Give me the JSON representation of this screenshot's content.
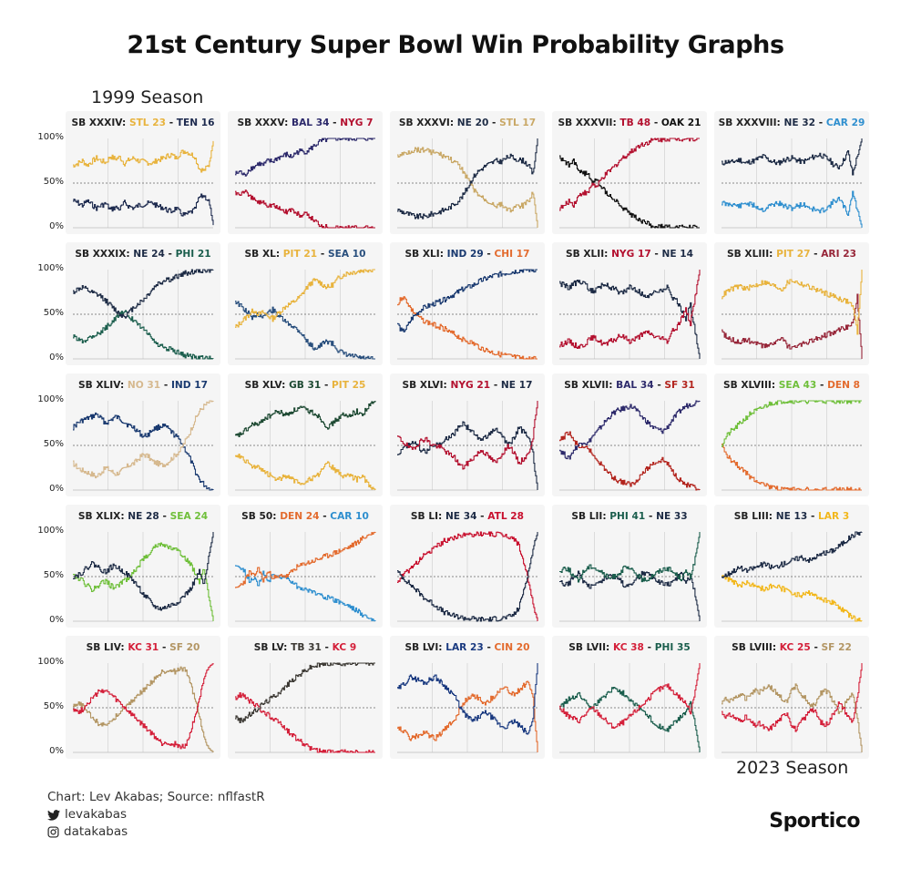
{
  "title": "21st Century Super Bowl Win Probability Graphs",
  "season_start": "1999 Season",
  "season_end": "2023 Season",
  "footer": {
    "credit": "Chart: Lev Akabas; Source: nflfastR",
    "twitter_handle": "levakabas",
    "instagram_handle": "datakabas",
    "twitter_icon": "twitter-bird-icon",
    "instagram_icon": "instagram-icon"
  },
  "brand": "Sportico",
  "chart_data": {
    "type": "line",
    "layout": "small-multiples",
    "y_ticks": [
      "100%",
      "50%",
      "0%"
    ],
    "ylim": [
      0,
      100
    ],
    "gridline": 50,
    "games": [
      {
        "title": "SB XXXIV",
        "w_team": "STL",
        "w_score": "23",
        "w_color": "#e8b33d",
        "l_team": "TEN",
        "l_score": "16",
        "l_color": "#1e2b4f",
        "winner_final": 0.97,
        "winner_path": [
          70,
          72,
          75,
          70,
          74,
          78,
          75,
          73,
          80,
          77,
          79,
          72,
          76,
          78,
          75,
          74,
          73,
          72,
          76,
          77,
          80,
          82,
          78,
          84,
          86,
          83,
          80,
          66,
          64,
          70,
          97
        ]
      },
      {
        "title": "SB XXXV",
        "w_team": "BAL",
        "w_score": "34",
        "w_color": "#2d2a6b",
        "l_team": "NYG",
        "l_score": "7",
        "l_color": "#b3102f",
        "winner_final": 1.0,
        "winner_path": [
          60,
          63,
          58,
          66,
          68,
          72,
          70,
          75,
          74,
          78,
          80,
          82,
          79,
          84,
          86,
          85,
          88,
          92,
          96,
          98,
          99,
          100,
          100,
          100,
          100,
          100,
          100,
          100,
          100,
          100,
          100
        ]
      },
      {
        "title": "SB XXXVI",
        "w_team": "NE",
        "w_score": "20",
        "w_color": "#1d2b45",
        "l_team": "STL",
        "l_score": "17",
        "l_color": "#c9a866",
        "winner_final": 1.0,
        "winner_path": [
          20,
          18,
          16,
          14,
          12,
          13,
          12,
          15,
          16,
          18,
          20,
          22,
          26,
          30,
          36,
          45,
          55,
          62,
          66,
          70,
          72,
          75,
          74,
          77,
          80,
          78,
          76,
          75,
          70,
          60,
          100
        ]
      },
      {
        "title": "SB XXXVII",
        "w_team": "TB",
        "w_score": "48",
        "w_color": "#b3102f",
        "l_team": "OAK",
        "l_score": "21",
        "l_color": "#111111",
        "winner_final": 1.0,
        "winner_path": [
          22,
          24,
          30,
          26,
          35,
          40,
          38,
          50,
          45,
          55,
          60,
          65,
          70,
          76,
          80,
          84,
          88,
          92,
          94,
          96,
          98,
          99,
          99,
          100,
          100,
          100,
          100,
          100,
          100,
          100,
          100
        ]
      },
      {
        "title": "SB XXXVIII",
        "w_team": "NE",
        "w_score": "32",
        "w_color": "#1d2b45",
        "l_team": "CAR",
        "l_score": "29",
        "l_color": "#2f8fcf",
        "winner_final": 1.0,
        "winner_path": [
          72,
          74,
          73,
          75,
          76,
          72,
          74,
          75,
          78,
          80,
          76,
          74,
          72,
          75,
          77,
          78,
          76,
          74,
          75,
          78,
          80,
          82,
          79,
          76,
          70,
          68,
          75,
          85,
          60,
          80,
          100
        ]
      },
      {
        "title": "SB XXXIX",
        "w_team": "NE",
        "w_score": "24",
        "w_color": "#1d2b45",
        "l_team": "PHI",
        "l_score": "21",
        "l_color": "#1b5e4d",
        "winner_final": 1.0,
        "winner_path": [
          75,
          78,
          80,
          77,
          74,
          72,
          70,
          65,
          60,
          55,
          50,
          48,
          52,
          58,
          62,
          66,
          72,
          78,
          84,
          86,
          90,
          88,
          92,
          94,
          96,
          97,
          98,
          99,
          99,
          99,
          100
        ]
      },
      {
        "title": "SB XL",
        "w_team": "PIT",
        "w_score": "21",
        "w_color": "#e8b33d",
        "l_team": "SEA",
        "l_score": "10",
        "l_color": "#294f7d",
        "winner_final": 1.0,
        "winner_path": [
          35,
          40,
          45,
          50,
          55,
          50,
          52,
          48,
          45,
          50,
          55,
          60,
          62,
          66,
          70,
          78,
          84,
          88,
          86,
          82,
          80,
          84,
          90,
          94,
          96,
          97,
          98,
          99,
          100,
          100,
          100
        ]
      },
      {
        "title": "SB XLI",
        "w_team": "IND",
        "w_score": "29",
        "w_color": "#1a3a70",
        "l_team": "CHI",
        "l_score": "17",
        "l_color": "#e36b2e",
        "winner_final": 1.0,
        "winner_path": [
          40,
          30,
          35,
          45,
          50,
          55,
          58,
          60,
          62,
          64,
          66,
          70,
          72,
          75,
          78,
          80,
          82,
          85,
          88,
          90,
          92,
          94,
          95,
          96,
          97,
          98,
          99,
          100,
          100,
          100,
          100
        ]
      },
      {
        "title": "SB XLII",
        "w_team": "NYG",
        "w_score": "17",
        "w_color": "#b3102f",
        "l_team": "NE",
        "l_score": "14",
        "l_color": "#1d2b45",
        "winner_final": 1.0,
        "winner_path": [
          15,
          18,
          20,
          16,
          14,
          15,
          20,
          24,
          22,
          18,
          16,
          20,
          22,
          26,
          24,
          20,
          22,
          25,
          28,
          30,
          26,
          24,
          22,
          20,
          30,
          35,
          45,
          55,
          40,
          70,
          100
        ]
      },
      {
        "title": "SB XLIII",
        "w_team": "PIT",
        "w_score": "27",
        "w_color": "#e8b33d",
        "l_team": "ARI",
        "l_score": "23",
        "l_color": "#972639",
        "winner_final": 1.0,
        "winner_path": [
          70,
          75,
          78,
          80,
          82,
          78,
          80,
          82,
          84,
          86,
          84,
          82,
          80,
          78,
          85,
          88,
          86,
          84,
          82,
          80,
          78,
          76,
          74,
          72,
          70,
          68,
          66,
          64,
          60,
          30,
          100
        ]
      },
      {
        "title": "SB XLIV",
        "w_team": "NO",
        "w_score": "31",
        "w_color": "#d6b98f",
        "l_team": "IND",
        "l_score": "17",
        "l_color": "#1a3a70",
        "winner_final": 1.0,
        "winner_path": [
          30,
          25,
          22,
          20,
          18,
          15,
          20,
          25,
          22,
          18,
          20,
          24,
          28,
          30,
          35,
          40,
          38,
          32,
          30,
          28,
          30,
          35,
          40,
          45,
          55,
          65,
          78,
          88,
          94,
          98,
          100
        ]
      },
      {
        "title": "SB XLV",
        "w_team": "GB",
        "w_score": "31",
        "w_color": "#1e4a33",
        "l_team": "PIT",
        "l_score": "25",
        "l_color": "#e8b33d",
        "winner_final": 1.0,
        "winner_path": [
          60,
          62,
          66,
          70,
          75,
          72,
          80,
          82,
          85,
          88,
          86,
          84,
          88,
          90,
          92,
          90,
          88,
          86,
          82,
          75,
          70,
          76,
          80,
          84,
          82,
          86,
          88,
          84,
          90,
          96,
          100
        ]
      },
      {
        "title": "SB XLVI",
        "w_team": "NYG",
        "w_score": "21",
        "w_color": "#b3102f",
        "l_team": "NE",
        "l_score": "17",
        "l_color": "#1d2b45",
        "winner_final": 1.0,
        "winner_path": [
          60,
          55,
          50,
          45,
          50,
          55,
          58,
          52,
          50,
          48,
          45,
          40,
          38,
          30,
          25,
          30,
          35,
          40,
          45,
          40,
          35,
          30,
          38,
          45,
          50,
          40,
          30,
          35,
          40,
          60,
          100
        ]
      },
      {
        "title": "SB XLVII",
        "w_team": "BAL",
        "w_score": "34",
        "w_color": "#2d2a6b",
        "l_team": "SF",
        "l_score": "31",
        "l_color": "#b3251e",
        "winner_final": 1.0,
        "winner_path": [
          45,
          40,
          35,
          45,
          50,
          55,
          52,
          60,
          65,
          72,
          78,
          84,
          88,
          90,
          92,
          94,
          92,
          85,
          80,
          75,
          70,
          68,
          66,
          70,
          78,
          84,
          90,
          94,
          96,
          98,
          100
        ]
      },
      {
        "title": "SB XLVIII",
        "w_team": "SEA",
        "w_score": "43",
        "w_color": "#6fbf3a",
        "l_team": "DEN",
        "l_score": "8",
        "l_color": "#e36b2e",
        "winner_final": 1.0,
        "winner_path": [
          50,
          60,
          66,
          70,
          75,
          80,
          85,
          88,
          90,
          93,
          96,
          98,
          99,
          100,
          100,
          100,
          100,
          100,
          100,
          100,
          100,
          100,
          100,
          100,
          100,
          100,
          100,
          100,
          100,
          100,
          100
        ]
      },
      {
        "title": "SB XLIX",
        "w_team": "NE",
        "w_score": "28",
        "w_color": "#1d2b45",
        "l_team": "SEA",
        "l_score": "24",
        "l_color": "#6fbf3a",
        "winner_final": 1.0,
        "winner_path": [
          50,
          52,
          55,
          60,
          65,
          62,
          58,
          55,
          60,
          62,
          58,
          55,
          50,
          45,
          38,
          30,
          25,
          18,
          15,
          14,
          16,
          18,
          20,
          25,
          30,
          35,
          45,
          55,
          40,
          70,
          100
        ]
      },
      {
        "title": "SB 50",
        "w_team": "DEN",
        "w_score": "24",
        "w_color": "#e36b2e",
        "l_team": "CAR",
        "l_score": "10",
        "l_color": "#2f8fcf",
        "winner_final": 1.0,
        "winner_path": [
          35,
          40,
          45,
          55,
          50,
          60,
          45,
          55,
          50,
          48,
          52,
          50,
          55,
          60,
          62,
          65,
          66,
          68,
          70,
          72,
          74,
          76,
          78,
          80,
          82,
          85,
          88,
          92,
          95,
          98,
          100
        ]
      },
      {
        "title": "SB LI",
        "w_team": "NE",
        "w_score": "34",
        "w_color": "#1d2b45",
        "l_team": "ATL",
        "l_score": "28",
        "l_color": "#c8102e",
        "winner_final": 1.0,
        "winner_path": [
          55,
          50,
          45,
          40,
          35,
          30,
          25,
          22,
          18,
          14,
          10,
          8,
          6,
          5,
          4,
          3,
          3,
          2,
          2,
          2,
          2,
          3,
          3,
          4,
          5,
          8,
          15,
          35,
          55,
          80,
          100
        ]
      },
      {
        "title": "SB LII",
        "w_team": "PHI",
        "w_score": "41",
        "w_color": "#1b5e4d",
        "l_team": "NE",
        "l_score": "33",
        "l_color": "#1d2b45",
        "winner_final": 1.0,
        "winner_path": [
          55,
          60,
          58,
          50,
          45,
          55,
          60,
          62,
          58,
          55,
          50,
          48,
          52,
          55,
          60,
          58,
          55,
          50,
          45,
          48,
          52,
          55,
          58,
          60,
          56,
          52,
          48,
          55,
          50,
          70,
          100
        ]
      },
      {
        "title": "SB LIII",
        "w_team": "NE",
        "w_score": "13",
        "w_color": "#1d2b45",
        "l_team": "LAR",
        "l_score": "3",
        "l_color": "#f2b71b",
        "winner_final": 1.0,
        "winner_path": [
          50,
          52,
          55,
          58,
          60,
          56,
          58,
          60,
          62,
          64,
          62,
          60,
          62,
          64,
          66,
          68,
          70,
          72,
          70,
          68,
          72,
          74,
          76,
          78,
          80,
          84,
          88,
          92,
          96,
          99,
          100
        ]
      },
      {
        "title": "SB LIV",
        "w_team": "KC",
        "w_score": "31",
        "w_color": "#d4203a",
        "l_team": "SF",
        "l_score": "20",
        "l_color": "#b39664",
        "winner_final": 1.0,
        "winner_path": [
          50,
          45,
          48,
          55,
          60,
          65,
          70,
          68,
          65,
          60,
          55,
          50,
          45,
          40,
          35,
          30,
          25,
          20,
          15,
          10,
          12,
          8,
          10,
          5,
          8,
          20,
          40,
          60,
          80,
          95,
          100
        ]
      },
      {
        "title": "SB LV",
        "w_team": "TB",
        "w_score": "31",
        "w_color": "#3d3a35",
        "l_team": "KC",
        "l_score": "9",
        "l_color": "#d4203a",
        "winner_final": 1.0,
        "winner_path": [
          40,
          35,
          38,
          42,
          45,
          50,
          55,
          58,
          62,
          66,
          70,
          75,
          80,
          84,
          88,
          92,
          95,
          97,
          98,
          99,
          100,
          100,
          100,
          100,
          100,
          100,
          100,
          100,
          100,
          100,
          100
        ]
      },
      {
        "title": "SB LVI",
        "w_team": "LAR",
        "w_score": "23",
        "w_color": "#1a3a80",
        "l_team": "CIN",
        "l_score": "20",
        "l_color": "#e36b2e",
        "winner_final": 1.0,
        "winner_path": [
          70,
          75,
          80,
          85,
          82,
          80,
          78,
          82,
          85,
          80,
          75,
          70,
          65,
          55,
          45,
          40,
          35,
          38,
          42,
          45,
          40,
          35,
          30,
          28,
          32,
          35,
          30,
          25,
          20,
          40,
          100
        ]
      },
      {
        "title": "SB LVII",
        "w_team": "KC",
        "w_score": "38",
        "w_color": "#d4203a",
        "l_team": "PHI",
        "l_score": "35",
        "l_color": "#1b5e4d",
        "winner_final": 1.0,
        "winner_path": [
          50,
          45,
          40,
          38,
          35,
          40,
          45,
          50,
          45,
          40,
          35,
          30,
          28,
          32,
          35,
          40,
          45,
          50,
          55,
          60,
          65,
          70,
          72,
          75,
          70,
          65,
          60,
          55,
          45,
          70,
          100
        ]
      },
      {
        "title": "SB LVIII",
        "w_team": "KC",
        "w_score": "25",
        "w_color": "#d4203a",
        "l_team": "SF",
        "l_score": "22",
        "l_color": "#b39664",
        "winner_final": 1.0,
        "winner_path": [
          45,
          40,
          42,
          38,
          35,
          40,
          35,
          30,
          32,
          28,
          25,
          30,
          35,
          40,
          45,
          30,
          25,
          35,
          40,
          50,
          45,
          35,
          30,
          35,
          45,
          55,
          50,
          40,
          35,
          60,
          100
        ]
      }
    ]
  }
}
